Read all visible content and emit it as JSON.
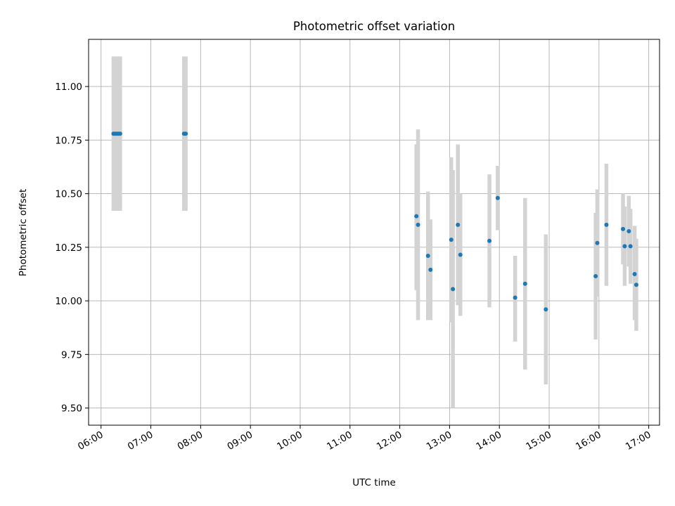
{
  "chart_data": {
    "type": "scatter",
    "title": "Photometric offset variation",
    "xlabel": "UTC time",
    "ylabel": "Photometric offset",
    "x_is_time": true,
    "xlim": [
      "05:45",
      "17:13"
    ],
    "ylim": [
      9.42,
      11.22
    ],
    "x_ticks": [
      "06:00",
      "07:00",
      "08:00",
      "09:00",
      "10:00",
      "11:00",
      "12:00",
      "13:00",
      "14:00",
      "15:00",
      "16:00",
      "17:00"
    ],
    "y_ticks": [
      "9.50",
      "9.75",
      "10.00",
      "10.25",
      "10.50",
      "10.75",
      "11.00"
    ],
    "grid": true,
    "marker_color": "#1f77b4",
    "errorbar_color": "#d3d3d3",
    "points": [
      {
        "time": "06:15",
        "y": 10.78,
        "err_low": 10.42,
        "err_high": 11.14
      },
      {
        "time": "06:17",
        "y": 10.78,
        "err_low": 10.42,
        "err_high": 11.14
      },
      {
        "time": "06:19",
        "y": 10.78,
        "err_low": 10.42,
        "err_high": 11.14
      },
      {
        "time": "06:21",
        "y": 10.78,
        "err_low": 10.42,
        "err_high": 11.14
      },
      {
        "time": "06:23",
        "y": 10.78,
        "err_low": 10.42,
        "err_high": 11.14
      },
      {
        "time": "07:40",
        "y": 10.78,
        "err_low": 10.42,
        "err_high": 11.14
      },
      {
        "time": "07:42",
        "y": 10.78,
        "err_low": 10.42,
        "err_high": 11.14
      },
      {
        "time": "12:20",
        "y": 10.395,
        "err_low": 10.05,
        "err_high": 10.73
      },
      {
        "time": "12:22",
        "y": 10.355,
        "err_low": 9.91,
        "err_high": 10.8
      },
      {
        "time": "12:34",
        "y": 10.21,
        "err_low": 9.91,
        "err_high": 10.51
      },
      {
        "time": "12:37",
        "y": 10.145,
        "err_low": 9.91,
        "err_high": 10.38
      },
      {
        "time": "13:02",
        "y": 10.285,
        "err_low": 9.9,
        "err_high": 10.67
      },
      {
        "time": "13:04",
        "y": 10.055,
        "err_low": 9.5,
        "err_high": 10.61
      },
      {
        "time": "13:10",
        "y": 10.355,
        "err_low": 9.98,
        "err_high": 10.73
      },
      {
        "time": "13:13",
        "y": 10.215,
        "err_low": 9.93,
        "err_high": 10.5
      },
      {
        "time": "13:48",
        "y": 10.28,
        "err_low": 9.97,
        "err_high": 10.59
      },
      {
        "time": "13:58",
        "y": 10.48,
        "err_low": 10.33,
        "err_high": 10.63
      },
      {
        "time": "14:19",
        "y": 10.015,
        "err_low": 9.81,
        "err_high": 10.21
      },
      {
        "time": "14:31",
        "y": 10.08,
        "err_low": 9.68,
        "err_high": 10.48
      },
      {
        "time": "14:56",
        "y": 9.96,
        "err_low": 9.61,
        "err_high": 10.31
      },
      {
        "time": "15:56",
        "y": 10.115,
        "err_low": 9.82,
        "err_high": 10.41
      },
      {
        "time": "15:58",
        "y": 10.27,
        "err_low": 10.02,
        "err_high": 10.52
      },
      {
        "time": "16:09",
        "y": 10.355,
        "err_low": 10.07,
        "err_high": 10.64
      },
      {
        "time": "16:29",
        "y": 10.335,
        "err_low": 10.17,
        "err_high": 10.5
      },
      {
        "time": "16:31",
        "y": 10.255,
        "err_low": 10.07,
        "err_high": 10.44
      },
      {
        "time": "16:36",
        "y": 10.325,
        "err_low": 10.16,
        "err_high": 10.49
      },
      {
        "time": "16:38",
        "y": 10.255,
        "err_low": 10.08,
        "err_high": 10.43
      },
      {
        "time": "16:43",
        "y": 10.125,
        "err_low": 9.91,
        "err_high": 10.35
      },
      {
        "time": "16:45",
        "y": 10.075,
        "err_low": 9.86,
        "err_high": 10.29
      }
    ]
  }
}
